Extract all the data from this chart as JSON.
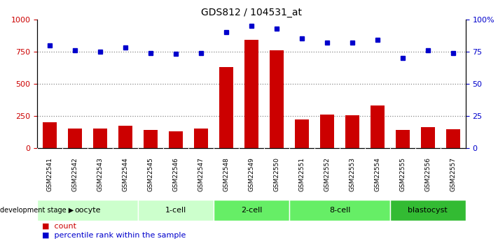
{
  "title": "GDS812 / 104531_at",
  "samples": [
    "GSM22541",
    "GSM22542",
    "GSM22543",
    "GSM22544",
    "GSM22545",
    "GSM22546",
    "GSM22547",
    "GSM22548",
    "GSM22549",
    "GSM22550",
    "GSM22551",
    "GSM22552",
    "GSM22553",
    "GSM22554",
    "GSM22555",
    "GSM22556",
    "GSM22557"
  ],
  "counts": [
    200,
    155,
    150,
    175,
    140,
    130,
    150,
    630,
    840,
    760,
    225,
    260,
    255,
    330,
    140,
    165,
    145
  ],
  "percentiles": [
    80,
    76,
    75,
    78,
    74,
    73,
    74,
    90,
    95,
    93,
    85,
    82,
    82,
    84,
    70,
    76,
    74
  ],
  "stage_ranges": [
    {
      "label": "oocyte",
      "start": 0,
      "end": 4,
      "color": "#ccffcc"
    },
    {
      "label": "1-cell",
      "start": 4,
      "end": 7,
      "color": "#ccffcc"
    },
    {
      "label": "2-cell",
      "start": 7,
      "end": 10,
      "color": "#66ee66"
    },
    {
      "label": "8-cell",
      "start": 10,
      "end": 14,
      "color": "#66ee66"
    },
    {
      "label": "blastocyst",
      "start": 14,
      "end": 17,
      "color": "#33bb33"
    }
  ],
  "bar_color": "#cc0000",
  "dot_color": "#0000cc",
  "left_ylim": [
    0,
    1000
  ],
  "right_ylim": [
    0,
    100
  ],
  "left_yticks": [
    0,
    250,
    500,
    750,
    1000
  ],
  "right_yticks": [
    0,
    25,
    50,
    75,
    100
  ],
  "right_yticklabels": [
    "0",
    "25",
    "50",
    "75",
    "100%"
  ],
  "grid_levels": [
    250,
    500,
    750
  ],
  "grid_color": "#888888",
  "sample_bg": "#cccccc",
  "legend_count_label": "count",
  "legend_pct_label": "percentile rank within the sample",
  "dev_stage_label": "development stage"
}
